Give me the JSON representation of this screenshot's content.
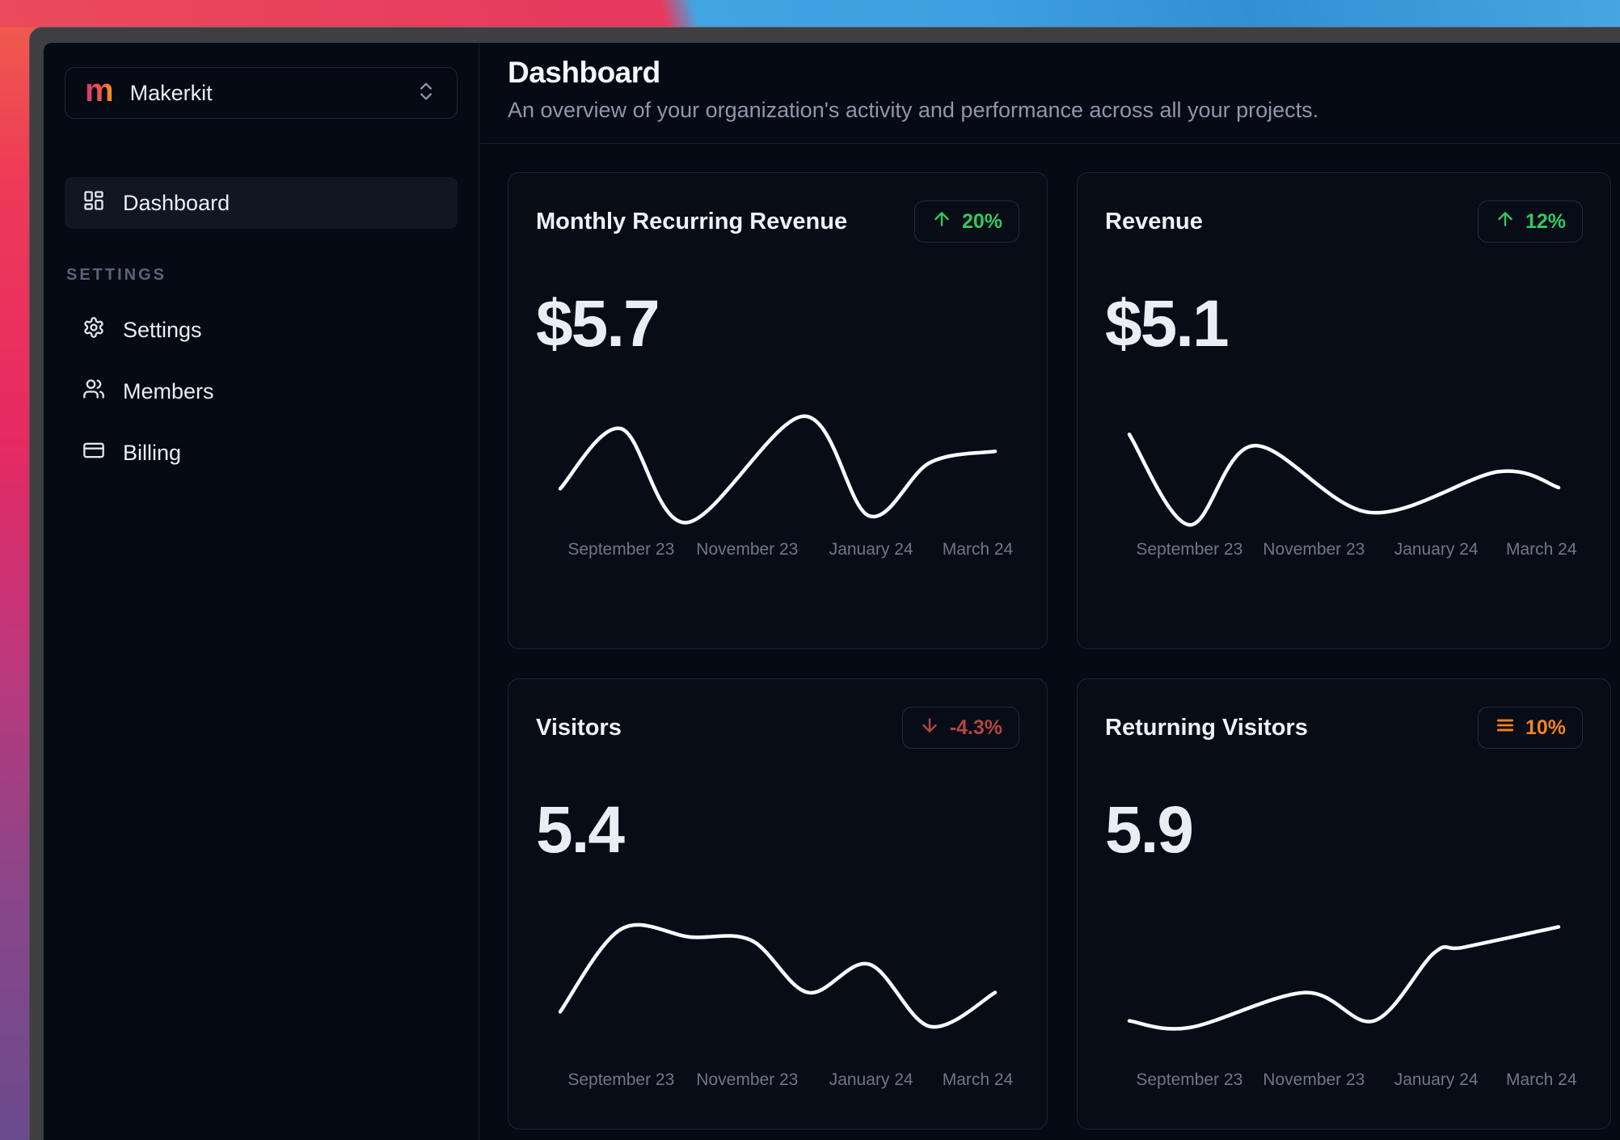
{
  "sidebar": {
    "workspace": {
      "logo_letter": "m",
      "name": "Makerkit"
    },
    "nav": [
      {
        "label": "Dashboard",
        "icon": "layout-dashboard-icon",
        "active": true
      }
    ],
    "section_label": "SETTINGS",
    "settings_nav": [
      {
        "label": "Settings",
        "icon": "gear-icon"
      },
      {
        "label": "Members",
        "icon": "users-icon"
      },
      {
        "label": "Billing",
        "icon": "credit-card-icon"
      }
    ]
  },
  "header": {
    "title": "Dashboard",
    "subtitle": "An overview of your organization's activity and performance across all your projects."
  },
  "colors": {
    "trend_up": "#2fca5f",
    "trend_down": "#b64540",
    "trend_flat": "#f5821f",
    "spark_line": "#fafbfc"
  },
  "cards": [
    {
      "title": "Monthly Recurring Revenue",
      "value": "$5.7",
      "badge": {
        "icon": "arrow-up-icon",
        "text": "20%",
        "trend": "up",
        "color": "#2fca5f"
      },
      "chart": {
        "type": "line",
        "x_labels": [
          "September 23",
          "November 23",
          "January 24",
          "March 24"
        ],
        "points": [
          [
            0,
            0.34
          ],
          [
            14,
            0.87
          ],
          [
            29,
            0.04
          ],
          [
            56,
            0.98
          ],
          [
            71,
            0.1
          ],
          [
            85,
            0.57
          ],
          [
            100,
            0.67
          ]
        ],
        "y_level_note": "0 = chart bottom, 1 = chart top"
      }
    },
    {
      "title": "Revenue",
      "value": "$5.1",
      "badge": {
        "icon": "arrow-up-icon",
        "text": "12%",
        "trend": "up",
        "color": "#2fca5f"
      },
      "chart": {
        "type": "line",
        "x_labels": [
          "September 23",
          "November 23",
          "January 24",
          "March 24"
        ],
        "points": [
          [
            0,
            0.82
          ],
          [
            14,
            0.02
          ],
          [
            29,
            0.72
          ],
          [
            56,
            0.13
          ],
          [
            86,
            0.49
          ],
          [
            100,
            0.35
          ]
        ],
        "y_level_note": "0 = chart bottom, 1 = chart top"
      }
    },
    {
      "title": "Visitors",
      "value": "5.4",
      "badge": {
        "icon": "arrow-down-icon",
        "text": "-4.3%",
        "trend": "down",
        "color": "#b64540"
      },
      "chart": {
        "type": "line",
        "x_labels": [
          "September 23",
          "November 23",
          "January 24",
          "March 24"
        ],
        "points": [
          [
            0,
            0.19
          ],
          [
            14,
            0.92
          ],
          [
            30,
            0.85
          ],
          [
            44,
            0.82
          ],
          [
            57,
            0.36
          ],
          [
            71,
            0.61
          ],
          [
            85,
            0.06
          ],
          [
            100,
            0.36
          ]
        ],
        "y_level_note": "0 = chart bottom, 1 = chart top"
      }
    },
    {
      "title": "Returning Visitors",
      "value": "5.9",
      "badge": {
        "icon": "trend-flat-icon",
        "text": "10%",
        "trend": "flat",
        "color": "#f5821f"
      },
      "chart": {
        "type": "line",
        "x_labels": [
          "September 23",
          "November 23",
          "January 24",
          "March 24"
        ],
        "points": [
          [
            0,
            0.11
          ],
          [
            14,
            0.05
          ],
          [
            41,
            0.36
          ],
          [
            57,
            0.11
          ],
          [
            71,
            0.71
          ],
          [
            78,
            0.76
          ],
          [
            100,
            0.94
          ]
        ],
        "y_level_note": "0 = chart bottom, 1 = chart top"
      }
    }
  ]
}
